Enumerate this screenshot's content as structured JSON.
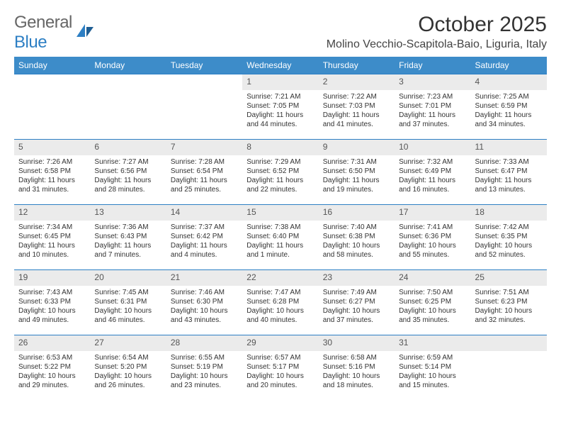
{
  "branding": {
    "logo_general": "General",
    "logo_blue": "Blue",
    "logo_color_primary": "#2d7fc4",
    "logo_color_text": "#666"
  },
  "header": {
    "title": "October 2025",
    "location": "Molino Vecchio-Scapitola-Baio, Liguria, Italy"
  },
  "colors": {
    "header_bg": "#3d8cc9",
    "header_text": "#ffffff",
    "daynum_bg": "#ebebeb",
    "divider": "#2d7fc4"
  },
  "weekdays": [
    "Sunday",
    "Monday",
    "Tuesday",
    "Wednesday",
    "Thursday",
    "Friday",
    "Saturday"
  ],
  "labels": {
    "sunrise": "Sunrise: ",
    "sunset": "Sunset: ",
    "daylight": "Daylight: "
  },
  "weeks": [
    [
      null,
      null,
      null,
      {
        "d": "1",
        "sunrise": "7:21 AM",
        "sunset": "7:05 PM",
        "daylight": "11 hours and 44 minutes."
      },
      {
        "d": "2",
        "sunrise": "7:22 AM",
        "sunset": "7:03 PM",
        "daylight": "11 hours and 41 minutes."
      },
      {
        "d": "3",
        "sunrise": "7:23 AM",
        "sunset": "7:01 PM",
        "daylight": "11 hours and 37 minutes."
      },
      {
        "d": "4",
        "sunrise": "7:25 AM",
        "sunset": "6:59 PM",
        "daylight": "11 hours and 34 minutes."
      }
    ],
    [
      {
        "d": "5",
        "sunrise": "7:26 AM",
        "sunset": "6:58 PM",
        "daylight": "11 hours and 31 minutes."
      },
      {
        "d": "6",
        "sunrise": "7:27 AM",
        "sunset": "6:56 PM",
        "daylight": "11 hours and 28 minutes."
      },
      {
        "d": "7",
        "sunrise": "7:28 AM",
        "sunset": "6:54 PM",
        "daylight": "11 hours and 25 minutes."
      },
      {
        "d": "8",
        "sunrise": "7:29 AM",
        "sunset": "6:52 PM",
        "daylight": "11 hours and 22 minutes."
      },
      {
        "d": "9",
        "sunrise": "7:31 AM",
        "sunset": "6:50 PM",
        "daylight": "11 hours and 19 minutes."
      },
      {
        "d": "10",
        "sunrise": "7:32 AM",
        "sunset": "6:49 PM",
        "daylight": "11 hours and 16 minutes."
      },
      {
        "d": "11",
        "sunrise": "7:33 AM",
        "sunset": "6:47 PM",
        "daylight": "11 hours and 13 minutes."
      }
    ],
    [
      {
        "d": "12",
        "sunrise": "7:34 AM",
        "sunset": "6:45 PM",
        "daylight": "11 hours and 10 minutes."
      },
      {
        "d": "13",
        "sunrise": "7:36 AM",
        "sunset": "6:43 PM",
        "daylight": "11 hours and 7 minutes."
      },
      {
        "d": "14",
        "sunrise": "7:37 AM",
        "sunset": "6:42 PM",
        "daylight": "11 hours and 4 minutes."
      },
      {
        "d": "15",
        "sunrise": "7:38 AM",
        "sunset": "6:40 PM",
        "daylight": "11 hours and 1 minute."
      },
      {
        "d": "16",
        "sunrise": "7:40 AM",
        "sunset": "6:38 PM",
        "daylight": "10 hours and 58 minutes."
      },
      {
        "d": "17",
        "sunrise": "7:41 AM",
        "sunset": "6:36 PM",
        "daylight": "10 hours and 55 minutes."
      },
      {
        "d": "18",
        "sunrise": "7:42 AM",
        "sunset": "6:35 PM",
        "daylight": "10 hours and 52 minutes."
      }
    ],
    [
      {
        "d": "19",
        "sunrise": "7:43 AM",
        "sunset": "6:33 PM",
        "daylight": "10 hours and 49 minutes."
      },
      {
        "d": "20",
        "sunrise": "7:45 AM",
        "sunset": "6:31 PM",
        "daylight": "10 hours and 46 minutes."
      },
      {
        "d": "21",
        "sunrise": "7:46 AM",
        "sunset": "6:30 PM",
        "daylight": "10 hours and 43 minutes."
      },
      {
        "d": "22",
        "sunrise": "7:47 AM",
        "sunset": "6:28 PM",
        "daylight": "10 hours and 40 minutes."
      },
      {
        "d": "23",
        "sunrise": "7:49 AM",
        "sunset": "6:27 PM",
        "daylight": "10 hours and 37 minutes."
      },
      {
        "d": "24",
        "sunrise": "7:50 AM",
        "sunset": "6:25 PM",
        "daylight": "10 hours and 35 minutes."
      },
      {
        "d": "25",
        "sunrise": "7:51 AM",
        "sunset": "6:23 PM",
        "daylight": "10 hours and 32 minutes."
      }
    ],
    [
      {
        "d": "26",
        "sunrise": "6:53 AM",
        "sunset": "5:22 PM",
        "daylight": "10 hours and 29 minutes."
      },
      {
        "d": "27",
        "sunrise": "6:54 AM",
        "sunset": "5:20 PM",
        "daylight": "10 hours and 26 minutes."
      },
      {
        "d": "28",
        "sunrise": "6:55 AM",
        "sunset": "5:19 PM",
        "daylight": "10 hours and 23 minutes."
      },
      {
        "d": "29",
        "sunrise": "6:57 AM",
        "sunset": "5:17 PM",
        "daylight": "10 hours and 20 minutes."
      },
      {
        "d": "30",
        "sunrise": "6:58 AM",
        "sunset": "5:16 PM",
        "daylight": "10 hours and 18 minutes."
      },
      {
        "d": "31",
        "sunrise": "6:59 AM",
        "sunset": "5:14 PM",
        "daylight": "10 hours and 15 minutes."
      },
      null
    ]
  ]
}
